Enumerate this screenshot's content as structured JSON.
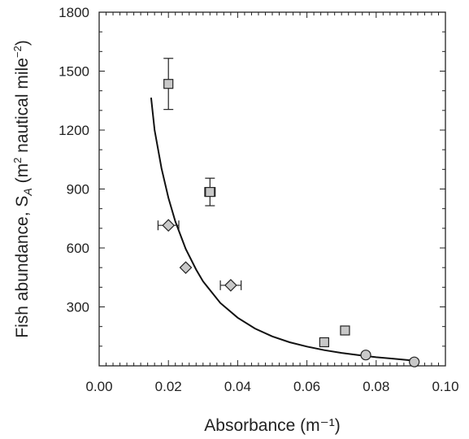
{
  "chart_data": {
    "type": "scatter",
    "title": "",
    "xlabel": "Absorbance (m⁻¹)",
    "ylabel_parts": {
      "prefix": "Fish abundance, S",
      "subscript": "A",
      "unit_open": " (m",
      "unit_sup": "2",
      "unit_mid": " nautical mile",
      "unit_sup2": "−2",
      "unit_close": ")"
    },
    "xlim": [
      0,
      0.1
    ],
    "ylim": [
      0,
      1800
    ],
    "x_ticks": [
      0,
      0.02,
      0.04,
      0.06,
      0.08,
      0.1
    ],
    "x_tick_labels": [
      "0.00",
      "0.02",
      "0.04",
      "0.06",
      "0.08",
      "0.10"
    ],
    "y_ticks": [
      300,
      600,
      900,
      1200,
      1500,
      1800
    ],
    "y_tick_labels": [
      "300",
      "600",
      "900",
      "1200",
      "1500",
      "1800"
    ],
    "grid": false,
    "marker_fill": "#c8c8c8",
    "marker_stroke": "#222222",
    "series": [
      {
        "marker": "square",
        "points": [
          {
            "x": 0.02,
            "y": 1435,
            "yerr": 130
          },
          {
            "x": 0.032,
            "y": 885,
            "yerr": 70,
            "xerr": 0.0015
          },
          {
            "x": 0.065,
            "y": 120
          },
          {
            "x": 0.071,
            "y": 180
          }
        ]
      },
      {
        "marker": "diamond",
        "points": [
          {
            "x": 0.02,
            "y": 715,
            "xerr": 0.003
          },
          {
            "x": 0.025,
            "y": 500
          },
          {
            "x": 0.038,
            "y": 410,
            "xerr": 0.003
          }
        ]
      },
      {
        "marker": "circle",
        "points": [
          {
            "x": 0.077,
            "y": 55
          },
          {
            "x": 0.091,
            "y": 20
          }
        ]
      }
    ],
    "fit_curve": {
      "x": [
        0.015,
        0.016,
        0.018,
        0.02,
        0.022,
        0.025,
        0.028,
        0.03,
        0.035,
        0.04,
        0.045,
        0.05,
        0.055,
        0.06,
        0.065,
        0.07,
        0.075,
        0.08,
        0.085,
        0.09
      ],
      "y": [
        1365,
        1200,
        1005,
        855,
        735,
        595,
        490,
        430,
        320,
        245,
        190,
        150,
        120,
        98,
        80,
        66,
        54,
        44,
        36,
        28
      ]
    }
  }
}
